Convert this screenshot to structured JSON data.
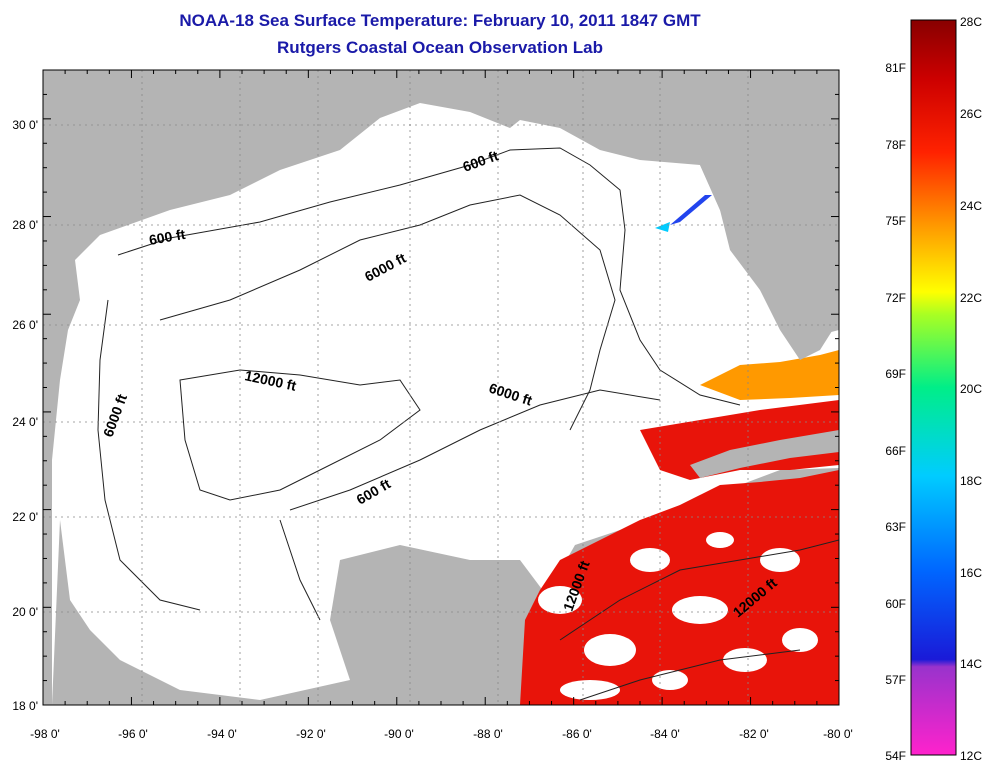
{
  "title": "NOAA-18 Sea Surface Temperature:  February 10, 2011 1847 GMT",
  "subtitle": "Rutgers Coastal Ocean Observation Lab",
  "map": {
    "lon_ticks": [
      "-98 0'",
      "-96 0'",
      "-94 0'",
      "-92 0'",
      "-90 0'",
      "-88 0'",
      "-86 0'",
      "-84 0'",
      "-82 0'",
      "-80 0'"
    ],
    "lat_ticks": [
      "18 0'",
      "20 0'",
      "22 0'",
      "24 0'",
      "26 0'",
      "28 0'",
      "30 0'"
    ],
    "colors": {
      "land": "#b4b4b4",
      "water_cloud": "#ffffff",
      "grid": "#888888",
      "sst_warm": "#e8140a"
    },
    "contour_labels": [
      {
        "text": "600 ft"
      },
      {
        "text": "600 ft"
      },
      {
        "text": "600 ft"
      },
      {
        "text": "6000 ft"
      },
      {
        "text": "6000 ft"
      },
      {
        "text": "6000 ft"
      },
      {
        "text": "12000 ft"
      },
      {
        "text": "12000 ft"
      },
      {
        "text": "12000 ft"
      }
    ]
  },
  "colorbar": {
    "fahrenheit": [
      "81F",
      "78F",
      "75F",
      "72F",
      "69F",
      "66F",
      "63F",
      "60F",
      "57F",
      "54F"
    ],
    "celsius": [
      "28C",
      "26C",
      "24C",
      "22C",
      "20C",
      "18C",
      "16C",
      "14C",
      "12C"
    ],
    "range_c": [
      12,
      28
    ],
    "gradient": [
      "#ff22cc",
      "#9933cc",
      "#2222ee",
      "#0077ff",
      "#00ddff",
      "#00ee99",
      "#aaff22",
      "#ffff00",
      "#ff9900",
      "#ff2200",
      "#cc0000",
      "#880000"
    ]
  }
}
